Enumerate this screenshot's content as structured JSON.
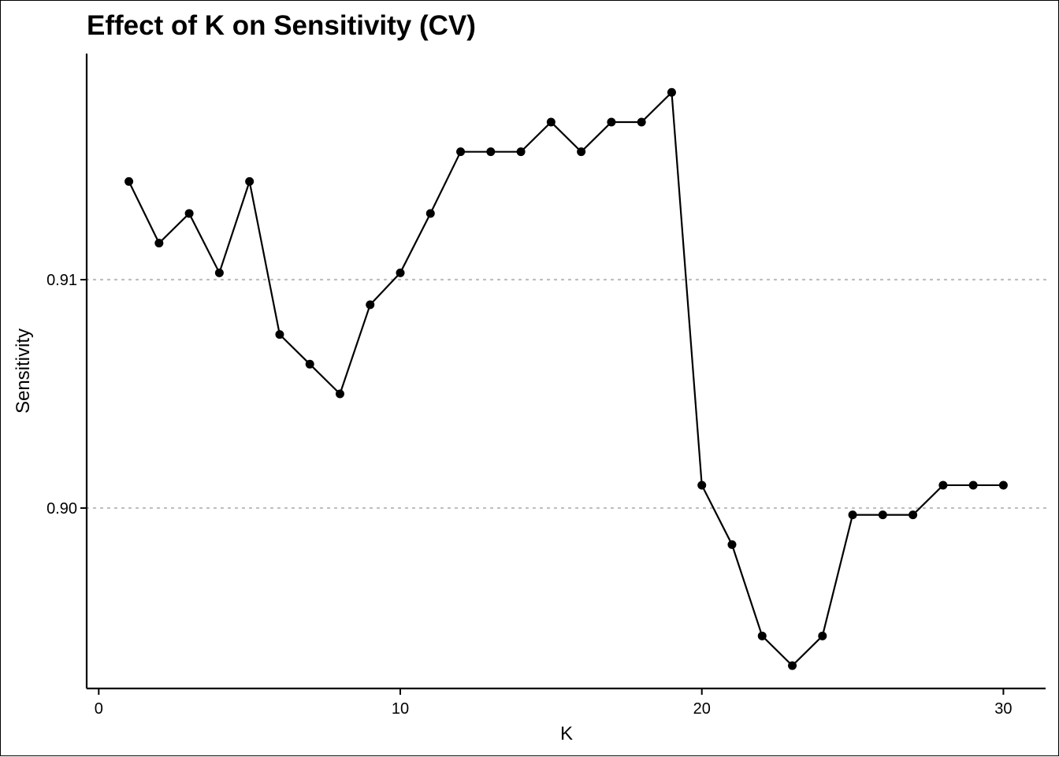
{
  "chart_data": {
    "type": "line",
    "title": "Effect of K on Sensitivity (CV)",
    "xlabel": "K",
    "ylabel": "Sensitivity",
    "xlim": [
      -0.4,
      31.4
    ],
    "ylim": [
      0.8921,
      0.9199
    ],
    "x_ticks": [
      0,
      10,
      20,
      30
    ],
    "x_tick_labels": [
      "0",
      "10",
      "20",
      "30"
    ],
    "y_ticks": [
      0.9,
      0.91
    ],
    "y_tick_labels": [
      "0.90",
      "0.91"
    ],
    "grid": "horizontal dotted at y ticks",
    "legend": "none",
    "series": [
      {
        "x": [
          1,
          2,
          3,
          4,
          5,
          6,
          7,
          8,
          9,
          10,
          11,
          12,
          13,
          14,
          15,
          16,
          17,
          18,
          19,
          20,
          21,
          22,
          23,
          24,
          25,
          26,
          27,
          28,
          29,
          30
        ],
        "values": [
          0.9143,
          0.9116,
          0.9129,
          0.9103,
          0.9143,
          0.9076,
          0.9063,
          0.905,
          0.9089,
          0.9103,
          0.9129,
          0.9156,
          0.9156,
          0.9156,
          0.9169,
          0.9156,
          0.9169,
          0.9169,
          0.9182,
          0.901,
          0.8984,
          0.8944,
          0.8931,
          0.8944,
          0.8997,
          0.8997,
          0.8997,
          0.901,
          0.901,
          0.901
        ],
        "color": "#000000"
      }
    ]
  }
}
